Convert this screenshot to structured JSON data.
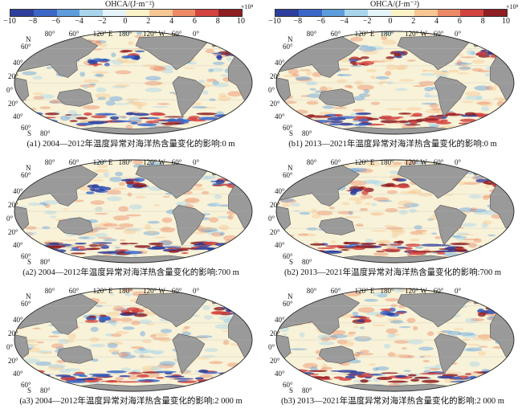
{
  "colorbar": {
    "title": "OHCA/(J·m⁻²)",
    "multiplier": "×10⁸",
    "ticks": [
      "−10",
      "−8",
      "−6",
      "−4",
      "−2",
      "0",
      "2",
      "4",
      "6",
      "8",
      "10"
    ],
    "colors": [
      "#2e3e9c",
      "#3a67c8",
      "#5d9ddd",
      "#a8d4ec",
      "#e4f3f7",
      "#fbf1c6",
      "#f6c792",
      "#ec8a66",
      "#d3433f",
      "#8f1e22"
    ]
  },
  "map_labels": {
    "lon_top": [
      "80°",
      "60°",
      "120° E",
      "180°",
      "120° W",
      "60°",
      "0°"
    ],
    "lat_left": [
      "60°",
      "40°",
      "20°",
      "0°",
      "20°",
      "40°",
      "60°"
    ],
    "north": "N",
    "south": "S",
    "south_80": "80°"
  },
  "panels": [
    {
      "caption": "(a1) 2004—2012年温度异常对海洋热含量变化的影响:0 m"
    },
    {
      "caption": "(b1) 2013—2021年温度异常对海洋热含量变化的影响:0 m"
    },
    {
      "caption": "(a2) 2004—2012年温度异常对海洋热含量变化的影响:700 m"
    },
    {
      "caption": "(b2) 2013—2021年温度异常对海洋热含量变化的影响:700 m"
    },
    {
      "caption": "(a3) 2004—2012年温度异常对海洋热含量变化的影响:2 000 m"
    },
    {
      "caption": "(b3) 2013—2021年温度异常对海洋热含量变化的影响:2 000 m"
    }
  ]
}
